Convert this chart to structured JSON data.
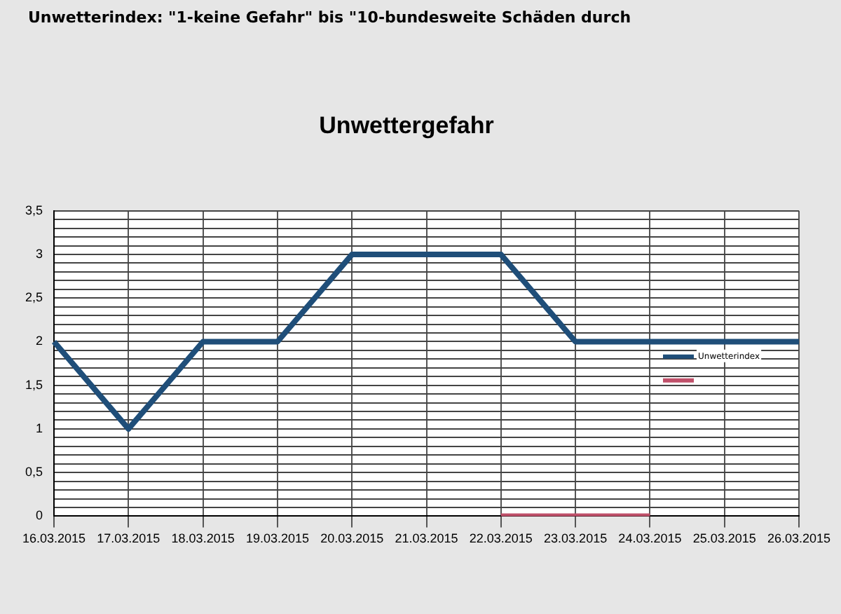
{
  "chart_data": {
    "type": "line",
    "title": "Unwettergefahr",
    "annotations": [
      "Unwetterindex: \"1-keine Gefahr\" bis \"10-bundesweite Schäden durch"
    ],
    "categories": [
      "16.03.2015",
      "17.03.2015",
      "18.03.2015",
      "19.03.2015",
      "20.03.2015",
      "21.03.2015",
      "22.03.2015",
      "23.03.2015",
      "24.03.2015",
      "25.03.2015",
      "26.03.2015"
    ],
    "series": [
      {
        "name": "Unwetterindex",
        "color": "#1f4e79",
        "values": [
          2,
          1,
          2,
          2,
          3,
          3,
          3,
          2,
          2,
          2,
          2
        ]
      },
      {
        "color": "#c0506a",
        "values": [
          null,
          null,
          null,
          null,
          null,
          null,
          0,
          0,
          0,
          null,
          null
        ]
      }
    ],
    "ylim": [
      0,
      3.5
    ],
    "yticks": [
      0,
      {
        "value": 0.1,
        "label": null
      },
      {
        "value": 0.2,
        "label": null
      },
      {
        "value": 0.3,
        "label": null
      },
      {
        "value": 0.4,
        "label": null
      },
      {
        "value": 0.5,
        "label": "0,5"
      },
      {
        "value": 0.6,
        "label": null
      },
      {
        "value": 0.7,
        "label": null
      },
      {
        "value": 0.8,
        "label": null
      },
      {
        "value": 0.9,
        "label": null
      },
      1,
      {
        "value": 1.1,
        "label": null
      },
      {
        "value": 1.2,
        "label": null
      },
      {
        "value": 1.3,
        "label": null
      },
      {
        "value": 1.4,
        "label": null
      },
      {
        "value": 1.5,
        "label": "1,5"
      },
      {
        "value": 1.6,
        "label": null
      },
      {
        "value": 1.7,
        "label": null
      },
      {
        "value": 1.8,
        "label": null
      },
      {
        "value": 1.9,
        "label": null
      },
      2,
      {
        "value": 2.1,
        "label": null
      },
      {
        "value": 2.2,
        "label": null
      },
      {
        "value": 2.3,
        "label": null
      },
      {
        "value": 2.4,
        "label": null
      },
      {
        "value": 2.5,
        "label": "2,5"
      },
      {
        "value": 2.6,
        "label": null
      },
      {
        "value": 2.7,
        "label": null
      },
      {
        "value": 2.8,
        "label": null
      },
      {
        "value": 2.9,
        "label": null
      },
      3,
      {
        "value": 3.1,
        "label": null
      },
      {
        "value": 3.2,
        "label": null
      },
      {
        "value": 3.3,
        "label": null
      },
      {
        "value": 3.4,
        "label": null
      },
      {
        "value": 3.5,
        "label": "3,5"
      }
    ],
    "grid": true,
    "legend": "right",
    "marker": "none",
    "line_style": "solid"
  }
}
